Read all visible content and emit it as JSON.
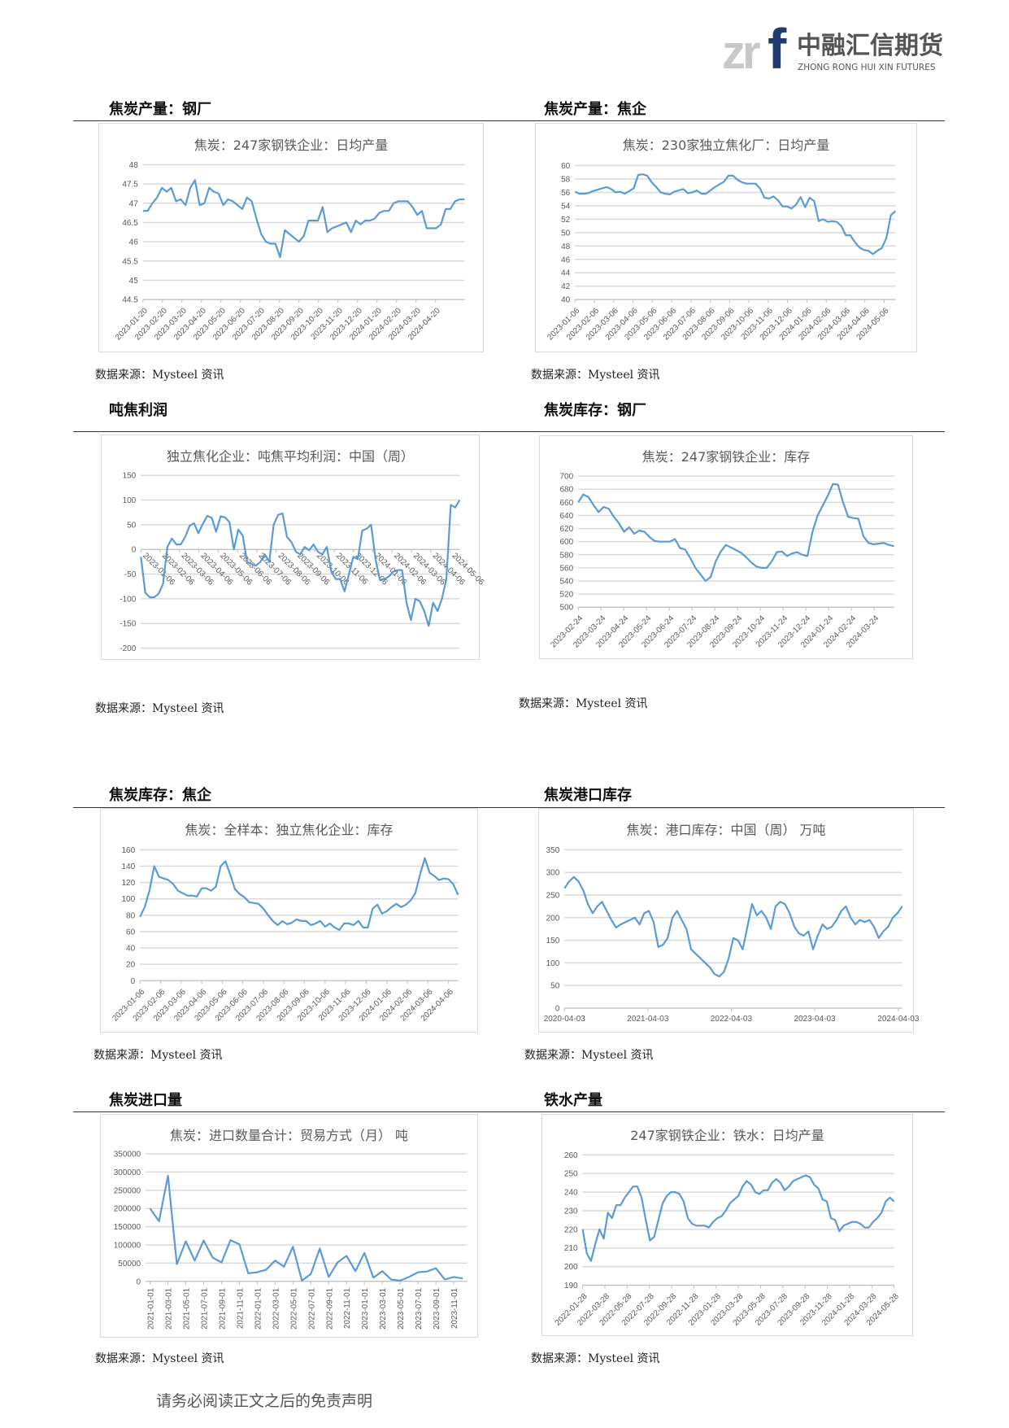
{
  "logo": {
    "mark": "zrf",
    "name_cn": "中融汇信期货",
    "name_en": "ZHONG RONG HUI XIN FUTURES",
    "colors": {
      "gray": "#c8c8c8",
      "navy": "#1f3a6e"
    }
  },
  "footer": "请务必阅读正文之后的免责声明",
  "style": {
    "line_color": "#5b9bd5",
    "grid_color": "#d9d9d9",
    "tick_color": "#595959",
    "title_color": "#595959"
  },
  "sections": [
    {
      "heading": "焦炭产量：钢厂",
      "source": "数据来源：Mysteel 资讯"
    },
    {
      "heading": "焦炭产量：焦企",
      "source": "数据来源：Mysteel 资讯"
    },
    {
      "heading": "吨焦利润",
      "source": "数据来源：Mysteel 资讯"
    },
    {
      "heading": "焦炭库存：钢厂",
      "source": "数据来源：Mysteel 资讯"
    },
    {
      "heading": "焦炭库存：焦企",
      "source": "数据来源：Mysteel 资讯"
    },
    {
      "heading": "焦炭港口库存",
      "source": "数据来源：Mysteel 资讯"
    },
    {
      "heading": "焦炭进口量",
      "source": "数据来源：Mysteel 资讯"
    },
    {
      "heading": "铁水产量",
      "source": "数据来源：Mysteel 资讯"
    }
  ],
  "chart_data": [
    {
      "type": "line",
      "title": "焦炭：247家钢铁企业：日均产量",
      "ylim": [
        44.5,
        48
      ],
      "ystep": 0.5,
      "grid": true,
      "x_ticks": [
        "2023-01-20",
        "2023-02-20",
        "2023-03-20",
        "2023-04-20",
        "2023-05-20",
        "2023-06-20",
        "2023-07-20",
        "2023-08-20",
        "2023-09-20",
        "2023-10-20",
        "2023-11-20",
        "2023-12-20",
        "2024-01-20",
        "2024-02-20",
        "2024-03-20",
        "2024-04-20"
      ],
      "values": [
        46.8,
        46.8,
        47.0,
        47.15,
        47.4,
        47.3,
        47.4,
        47.05,
        47.1,
        46.95,
        47.4,
        47.6,
        46.95,
        47.0,
        47.4,
        47.3,
        47.25,
        46.95,
        47.1,
        47.05,
        46.95,
        46.85,
        47.15,
        47.05,
        46.6,
        46.2,
        46.0,
        45.95,
        45.95,
        45.6,
        46.3,
        46.2,
        46.1,
        46.0,
        46.15,
        46.55,
        46.55,
        46.55,
        46.9,
        46.25,
        46.35,
        46.4,
        46.45,
        46.5,
        46.25,
        46.55,
        46.45,
        46.55,
        46.55,
        46.6,
        46.75,
        46.8,
        46.8,
        47.0,
        47.05,
        47.05,
        47.05,
        46.9,
        46.7,
        46.8,
        46.35,
        46.35,
        46.35,
        46.45,
        46.85,
        46.85,
        47.05,
        47.1,
        47.1
      ]
    },
    {
      "type": "line",
      "title": "焦炭：230家独立焦化厂：日均产量",
      "ylim": [
        40,
        60
      ],
      "ystep": 2,
      "grid": true,
      "x_ticks": [
        "2023-01-06",
        "2023-02-06",
        "2023-03-06",
        "2023-04-06",
        "2023-05-06",
        "2023-06-06",
        "2023-07-06",
        "2023-08-06",
        "2023-09-06",
        "2023-10-06",
        "2023-11-06",
        "2023-12-06",
        "2024-01-06",
        "2024-02-06",
        "2024-03-06",
        "2024-04-06",
        "2024-05-06"
      ],
      "values": [
        56.1,
        55.8,
        55.8,
        55.9,
        56.2,
        56.4,
        56.6,
        56.8,
        56.5,
        56.0,
        56.1,
        55.8,
        56.2,
        56.6,
        58.6,
        58.7,
        58.5,
        57.5,
        56.8,
        56.0,
        55.8,
        55.7,
        56.1,
        56.3,
        56.5,
        55.9,
        56.0,
        56.3,
        55.8,
        55.8,
        56.3,
        56.8,
        57.2,
        57.6,
        58.5,
        58.5,
        57.9,
        57.5,
        57.3,
        57.3,
        57.3,
        56.6,
        55.2,
        55.1,
        55.4,
        54.8,
        53.9,
        53.9,
        53.6,
        54.2,
        55.3,
        53.8,
        55.2,
        54.7,
        51.7,
        52.0,
        51.6,
        51.7,
        51.6,
        51.0,
        49.6,
        49.6,
        48.6,
        47.8,
        47.4,
        47.3,
        46.8,
        47.3,
        47.7,
        49.2,
        52.6,
        53.2
      ]
    },
    {
      "type": "line",
      "title": "独立焦化企业：吨焦平均利润：中国（周）",
      "ylim": [
        -200,
        150
      ],
      "ystep": 50,
      "grid": true,
      "x_ticks": [
        "2023-01-06",
        "2023-02-06",
        "2023-03-06",
        "2023-04-06",
        "2023-05-06",
        "2023-06-06",
        "2023-07-06",
        "2023-08-06",
        "2023-09-06",
        "2023-10-06",
        "2023-11-06",
        "2023-12-06",
        "2024-01-06",
        "2024-02-06",
        "2024-03-06",
        "2024-04-06",
        "2024-05-06"
      ],
      "values": [
        -15,
        -88,
        -97,
        -97,
        -90,
        -70,
        5,
        22,
        10,
        10,
        25,
        48,
        53,
        33,
        52,
        68,
        64,
        36,
        67,
        65,
        55,
        0,
        40,
        28,
        -25,
        -30,
        -33,
        -25,
        -10,
        -25,
        50,
        70,
        73,
        25,
        15,
        -5,
        -10,
        5,
        -2,
        10,
        -5,
        -10,
        5,
        -45,
        -60,
        -60,
        -85,
        -50,
        -15,
        -20,
        38,
        42,
        50,
        -20,
        -62,
        -60,
        -55,
        -45,
        -42,
        -42,
        -108,
        -143,
        -100,
        -105,
        -125,
        -155,
        -108,
        -125,
        -100,
        -60,
        90,
        85,
        100
      ]
    },
    {
      "type": "line",
      "title": "焦炭：247家钢铁企业：库存",
      "ylim": [
        500,
        700
      ],
      "ystep": 20,
      "grid": true,
      "x_ticks": [
        "2023-02-24",
        "2023-03-24",
        "2023-04-24",
        "2023-05-24",
        "2023-06-24",
        "2023-07-24",
        "2023-08-24",
        "2023-09-24",
        "2023-10-24",
        "2023-11-24",
        "2023-12-24",
        "2024-01-24",
        "2024-02-24",
        "2024-03-24"
      ],
      "values": [
        660,
        672,
        668,
        656,
        645,
        653,
        650,
        638,
        628,
        615,
        622,
        612,
        617,
        615,
        607,
        601,
        600,
        600,
        600,
        604,
        590,
        588,
        575,
        560,
        550,
        540,
        546,
        570,
        585,
        595,
        591,
        587,
        583,
        576,
        568,
        562,
        560,
        560,
        570,
        584,
        585,
        578,
        582,
        584,
        580,
        578,
        615,
        640,
        655,
        670,
        688,
        687,
        660,
        638,
        636,
        635,
        608,
        598,
        596,
        597,
        598,
        595,
        593
      ]
    },
    {
      "type": "line",
      "title": "焦炭：全样本：独立焦化企业：库存",
      "ylim": [
        0,
        160
      ],
      "ystep": 20,
      "grid": true,
      "x_ticks": [
        "2023-01-06",
        "2023-02-06",
        "2023-03-06",
        "2023-04-06",
        "2023-05-06",
        "2023-06-06",
        "2023-07-06",
        "2023-08-06",
        "2023-09-06",
        "2023-10-06",
        "2023-11-06",
        "2023-12-06",
        "2024-01-06",
        "2024-02-06",
        "2024-03-06",
        "2024-04-06"
      ],
      "values": [
        78,
        90,
        110,
        140,
        127,
        125,
        123,
        118,
        110,
        107,
        104,
        104,
        103,
        113,
        113,
        110,
        115,
        140,
        146,
        130,
        112,
        106,
        102,
        96,
        95,
        94,
        88,
        80,
        73,
        68,
        73,
        69,
        71,
        75,
        73,
        73,
        68,
        70,
        73,
        66,
        70,
        65,
        62,
        70,
        70,
        68,
        73,
        65,
        65,
        88,
        93,
        82,
        85,
        90,
        94,
        90,
        93,
        98,
        107,
        130,
        150,
        132,
        128,
        123,
        125,
        124,
        118,
        105
      ]
    },
    {
      "type": "line",
      "title": "焦炭：港口库存：中国（周） 万吨",
      "ylim": [
        0,
        350
      ],
      "ystep": 50,
      "grid": true,
      "xlim": [
        "2020-04-03",
        "2024-04-20"
      ],
      "x_ticks": [
        "2020-04-03",
        "2021-04-03",
        "2022-04-03",
        "2023-04-03",
        "2024-04-03"
      ],
      "values": [
        265,
        280,
        290,
        280,
        260,
        230,
        210,
        225,
        235,
        215,
        195,
        178,
        185,
        190,
        195,
        200,
        185,
        210,
        215,
        190,
        135,
        140,
        155,
        200,
        215,
        195,
        175,
        130,
        120,
        110,
        100,
        90,
        75,
        70,
        80,
        110,
        155,
        150,
        130,
        180,
        230,
        205,
        215,
        200,
        175,
        225,
        235,
        230,
        210,
        180,
        165,
        160,
        170,
        130,
        160,
        185,
        175,
        180,
        195,
        215,
        225,
        200,
        185,
        195,
        190,
        195,
        180,
        155,
        170,
        180,
        200,
        210,
        225
      ]
    },
    {
      "type": "line",
      "title": "焦炭：进口数量合计：贸易方式（月） 吨",
      "ylim": [
        0,
        350000
      ],
      "ystep": 50000,
      "grid": true,
      "x_ticks": [
        "2021-01-01",
        "2021-03-01",
        "2021-05-01",
        "2021-07-01",
        "2021-09-01",
        "2021-11-01",
        "2022-01-01",
        "2022-03-01",
        "2022-05-01",
        "2022-07-01",
        "2022-09-01",
        "2022-11-01",
        "2023-01-01",
        "2023-03-01",
        "2023-05-01",
        "2023-07-01",
        "2023-09-01",
        "2023-11-01"
      ],
      "values": [
        200000,
        165000,
        290000,
        47000,
        110000,
        57000,
        112000,
        65000,
        52000,
        113000,
        102000,
        22000,
        25000,
        32000,
        57000,
        40000,
        95000,
        2000,
        20000,
        90000,
        12000,
        52000,
        70000,
        28000,
        78000,
        10000,
        28000,
        5000,
        2000,
        12000,
        25000,
        27000,
        36000,
        5000,
        12000,
        8000
      ]
    },
    {
      "type": "line",
      "title": "247家钢铁企业：铁水：日均产量",
      "ylim": [
        190,
        260
      ],
      "ystep": 10,
      "grid": true,
      "x_ticks": [
        "2022-01-28",
        "2022-03-28",
        "2022-05-28",
        "2022-07-28",
        "2022-09-28",
        "2022-11-28",
        "2023-01-28",
        "2023-03-28",
        "2023-05-28",
        "2023-07-28",
        "2023-09-28",
        "2023-11-28",
        "2024-01-28",
        "2024-03-28",
        "2024-05-28"
      ],
      "values": [
        220,
        207,
        203,
        212,
        220,
        215,
        229,
        226,
        233,
        233,
        237,
        240,
        243,
        243,
        237,
        225,
        214,
        216,
        225,
        234,
        238,
        240,
        240,
        239,
        235,
        226,
        223,
        222,
        222,
        222,
        221,
        224,
        226,
        227,
        230,
        234,
        236,
        238,
        243,
        246,
        244,
        240,
        239,
        241,
        241,
        245,
        247,
        245,
        241,
        243,
        246,
        247,
        248,
        249,
        248,
        244,
        242,
        236,
        235,
        226,
        225,
        219,
        222,
        223,
        224,
        224,
        223,
        221,
        221,
        224,
        226,
        229,
        235,
        237,
        235
      ]
    }
  ]
}
